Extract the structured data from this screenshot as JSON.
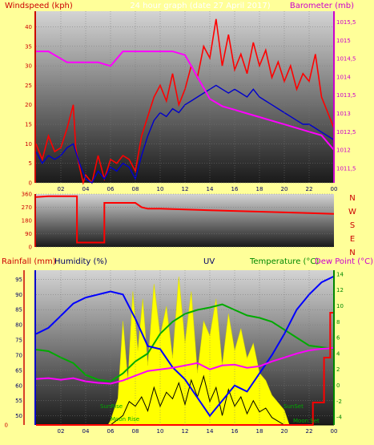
{
  "header": {
    "left_title": "Windspeed (kph)",
    "center_title": "24 hour graph (date 27 April 2017)",
    "right_title": "Barometer (mb)"
  },
  "colors": {
    "background": "#ffff99",
    "wind": "#ff0000",
    "gust": "#0000cc",
    "barometer": "#ff00ff",
    "direction": "#ff0000",
    "rain": "#ff0000",
    "humidity": "#0000ff",
    "uv": "#ffff00",
    "temperature": "#00aa00",
    "dewpoint": "#ff00ff",
    "solar": "#000000",
    "axis_green": "#008800",
    "label_red": "#cc0000",
    "label_dark": "#000066"
  },
  "direction_labels": [
    "N",
    "W",
    "S",
    "E",
    "N"
  ],
  "bottom_header": {
    "rainfall": "Rainfall (mm)",
    "humidity": "Humidity (%)",
    "uv": "UV",
    "temperature": "Temperature (°C)",
    "dewpoint": "Dew Point (°C)"
  },
  "annotations": {
    "sunrise": "SunRise",
    "sunset": "SunSet",
    "moonrise": "Moon Rise",
    "moonset": "Moon Set"
  },
  "chart_data": [
    {
      "type": "line",
      "name": "wind-barometer",
      "x_ticks": [
        "02",
        "04",
        "06",
        "08",
        "10",
        "12",
        "14",
        "16",
        "18",
        "20",
        "22",
        "00"
      ],
      "y_left_ticks": [
        0,
        5,
        10,
        15,
        20,
        25,
        30,
        35,
        40
      ],
      "y_left_lim": [
        0,
        44
      ],
      "y_right_ticks": [
        "1011,5",
        "1012",
        "1012,5",
        "1013",
        "1013,5",
        "1014",
        "1014,5",
        "1015",
        "1015,5"
      ],
      "y_right_lim": [
        1011.1,
        1015.8
      ],
      "series": [
        {
          "key": "wind",
          "x": [
            0,
            0.5,
            1,
            1.5,
            2,
            2.5,
            3,
            3.2,
            3.5,
            3.8,
            4,
            4.5,
            5,
            5.5,
            6,
            6.5,
            7,
            7.5,
            8,
            8.5,
            9,
            9.5,
            10,
            10.5,
            11,
            11.5,
            12,
            12.5,
            13,
            13.5,
            14,
            14.5,
            15,
            15.5,
            16,
            16.5,
            17,
            17.5,
            18,
            18.5,
            19,
            19.5,
            20,
            20.5,
            21,
            21.5,
            22,
            22.5,
            23,
            23.5,
            24
          ],
          "values": [
            10,
            6,
            12,
            8,
            9,
            14,
            20,
            9,
            4,
            0,
            2,
            0,
            7,
            1,
            6,
            5,
            7,
            6,
            3,
            12,
            17,
            22,
            25,
            21,
            28,
            20,
            24,
            30,
            27,
            35,
            32,
            42,
            30,
            38,
            29,
            33,
            28,
            36,
            30,
            34,
            27,
            31,
            26,
            30,
            24,
            28,
            26,
            33,
            22,
            18,
            14
          ]
        },
        {
          "key": "gust",
          "x": [
            0,
            0.5,
            1,
            1.5,
            2,
            2.5,
            3,
            3.5,
            4,
            4.5,
            5,
            5.5,
            6,
            6.5,
            7,
            7.5,
            8,
            8.5,
            9,
            9.5,
            10,
            10.5,
            11,
            11.5,
            12,
            12.5,
            13,
            13.5,
            14,
            14.5,
            15,
            15.5,
            16,
            16.5,
            17,
            17.5,
            18,
            18.5,
            19,
            19.5,
            20,
            20.5,
            21,
            21.5,
            22,
            22.5,
            23,
            23.5,
            24
          ],
          "values": [
            8,
            5,
            7,
            6,
            7,
            9,
            10,
            5,
            1,
            0,
            3,
            1,
            4,
            3,
            5,
            4,
            1,
            7,
            12,
            16,
            18,
            17,
            19,
            18,
            20,
            21,
            22,
            23,
            24,
            25,
            24,
            23,
            24,
            23,
            22,
            24,
            22,
            21,
            20,
            19,
            18,
            17,
            16,
            15,
            15,
            14,
            13,
            12,
            11
          ]
        },
        {
          "key": "barometer",
          "x": [
            0,
            1,
            2,
            2.5,
            3,
            4,
            5,
            6,
            6.5,
            7,
            7.5,
            8,
            9,
            10,
            11,
            12,
            12.5,
            13,
            13.5,
            14,
            15,
            16,
            17,
            18,
            19,
            20,
            21,
            22,
            23,
            24
          ],
          "values": [
            1014.7,
            1014.7,
            1014.5,
            1014.4,
            1014.4,
            1014.4,
            1014.4,
            1014.3,
            1014.5,
            1014.7,
            1014.7,
            1014.7,
            1014.7,
            1014.7,
            1014.7,
            1014.6,
            1014.3,
            1014.0,
            1013.7,
            1013.4,
            1013.2,
            1013.1,
            1013.0,
            1012.9,
            1012.8,
            1012.7,
            1012.6,
            1012.5,
            1012.4,
            1012.0
          ]
        }
      ]
    },
    {
      "type": "line",
      "name": "wind-direction",
      "y_ticks": [
        0,
        90,
        180,
        270,
        360
      ],
      "y_lim": [
        0,
        360
      ],
      "series": [
        {
          "key": "direction",
          "x": [
            0,
            1,
            2,
            3,
            3.3,
            3.3,
            5.5,
            5.5,
            6,
            7,
            8,
            8.5,
            9,
            10,
            12,
            14,
            16,
            18,
            20,
            22,
            24
          ],
          "values": [
            340,
            345,
            345,
            345,
            345,
            30,
            30,
            300,
            300,
            300,
            300,
            270,
            260,
            260,
            255,
            250,
            245,
            240,
            235,
            230,
            225
          ]
        }
      ]
    },
    {
      "type": "line",
      "name": "rain-humidity-uv-temperature",
      "x_ticks": [
        "02",
        "04",
        "06",
        "08",
        "10",
        "12",
        "14",
        "16",
        "18",
        "20",
        "22",
        "00"
      ],
      "y_humidity_ticks": [
        50,
        55,
        60,
        65,
        70,
        75,
        80,
        85,
        90,
        95
      ],
      "y_humidity_lim": [
        47,
        98
      ],
      "y_rain_ticks": [
        0
      ],
      "y_temp_ticks": [
        -4,
        -2,
        0,
        2,
        4,
        6,
        8,
        10,
        12,
        14
      ],
      "y_temp_lim": [
        -5,
        14.5
      ],
      "series": [
        {
          "key": "humidity",
          "x": [
            0,
            1,
            2,
            3,
            4,
            5,
            6,
            7,
            8,
            9,
            10,
            11,
            12,
            13,
            14,
            15,
            16,
            17,
            18,
            19,
            20,
            21,
            22,
            23,
            24
          ],
          "values": [
            77,
            79,
            83,
            87,
            89,
            90,
            91,
            90,
            82,
            73,
            72,
            66,
            62,
            56,
            50,
            55,
            60,
            58,
            64,
            70,
            77,
            85,
            90,
            94,
            96
          ]
        },
        {
          "key": "temperature",
          "x": [
            0,
            1,
            2,
            3,
            4,
            5,
            6,
            7,
            8,
            9,
            10,
            11,
            12,
            13,
            14,
            15,
            16,
            17,
            18,
            19,
            20,
            21,
            22,
            23,
            24
          ],
          "values": [
            4.5,
            4.3,
            3.5,
            2.8,
            1.3,
            0.7,
            0.5,
            1.5,
            3.0,
            4.0,
            6.5,
            8.0,
            9.0,
            9.5,
            9.8,
            10.2,
            9.5,
            8.8,
            8.5,
            8.0,
            7.0,
            6.0,
            5.0,
            4.8,
            4.6
          ]
        },
        {
          "key": "dewpoint",
          "x": [
            0,
            1,
            2,
            3,
            4,
            5,
            6,
            7,
            8,
            9,
            10,
            11,
            12,
            13,
            14,
            15,
            16,
            17,
            18,
            19,
            20,
            21,
            22,
            23,
            24
          ],
          "values": [
            0.8,
            0.9,
            0.7,
            0.9,
            0.5,
            0.3,
            0.2,
            0.6,
            1.2,
            1.8,
            2.0,
            2.2,
            2.5,
            2.8,
            2.0,
            2.5,
            2.6,
            2.2,
            2.4,
            3.0,
            3.5,
            4.0,
            4.4,
            4.6,
            4.7
          ]
        },
        {
          "key": "uv",
          "x": [
            0,
            5.8,
            6,
            6.6,
            7,
            7.4,
            7.8,
            8.2,
            8.6,
            9,
            9.5,
            10,
            10.5,
            11,
            11.5,
            12,
            12.5,
            13,
            13.5,
            14,
            14.5,
            15,
            15.5,
            16,
            16.5,
            17,
            17.5,
            18,
            18.5,
            19,
            19.5,
            20,
            20.4,
            24
          ],
          "values": [
            0,
            0,
            3,
            18,
            70,
            30,
            90,
            50,
            85,
            40,
            95,
            60,
            80,
            45,
            100,
            55,
            90,
            35,
            70,
            60,
            85,
            40,
            75,
            50,
            65,
            45,
            55,
            35,
            30,
            20,
            15,
            10,
            0,
            0
          ]
        },
        {
          "key": "solar",
          "x": [
            0,
            6,
            7,
            7.5,
            8,
            8.5,
            9,
            9.5,
            10,
            10.5,
            11,
            11.5,
            12,
            12.5,
            13,
            13.5,
            14,
            14.5,
            15,
            15.5,
            16,
            16.5,
            17,
            17.5,
            18,
            18.5,
            19,
            20,
            24
          ],
          "values": [
            0,
            0,
            10,
            25,
            20,
            30,
            15,
            40,
            20,
            35,
            28,
            45,
            22,
            48,
            30,
            52,
            25,
            40,
            10,
            38,
            20,
            30,
            12,
            26,
            14,
            18,
            8,
            0,
            0
          ]
        },
        {
          "key": "rain",
          "x": [
            0,
            22.3,
            22.3,
            23.2,
            23.2,
            23.7,
            23.7,
            24
          ],
          "values": [
            0,
            0,
            1,
            1,
            3,
            3,
            5,
            5
          ]
        }
      ]
    }
  ]
}
